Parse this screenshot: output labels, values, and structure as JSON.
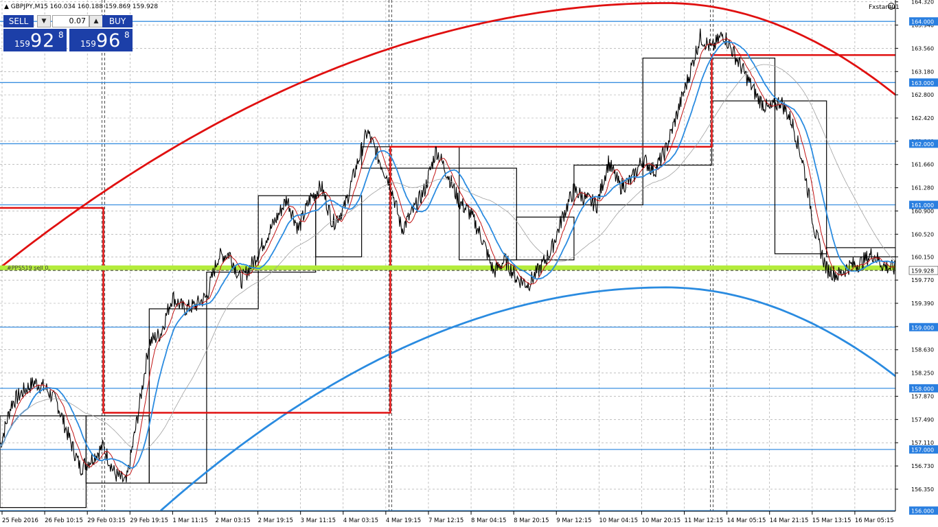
{
  "header": {
    "symbol_line": "▲ GBPJPY,M15  160.034 160.188 159.869 159.928"
  },
  "expert": {
    "label": "Fxstareu1"
  },
  "trade_panel": {
    "sell_label": "SELL",
    "buy_label": "BUY",
    "lot": "0.07",
    "sell_quote": {
      "prefix": "159",
      "big": "92",
      "sup": "8"
    },
    "buy_quote": {
      "prefix": "159",
      "big": "96",
      "sup": "8"
    }
  },
  "object_label": "#PPS519 sell 0.",
  "colors": {
    "background": "#ffffff",
    "grid": "#9a9a9a",
    "candles": "#000000",
    "level_lines": "#3a8fe0",
    "level_label_bg": "#2a7fe0",
    "red": "#e01010",
    "blue_curve": "#2a8be0",
    "highlight": "#b4ec3c",
    "box": "#000000"
  },
  "chart_data": {
    "type": "line",
    "symbol": "GBPJPY",
    "timeframe": "M15",
    "ohlc": {
      "open": 160.034,
      "high": 160.188,
      "low": 159.869,
      "close": 159.928
    },
    "ylim": [
      155.99,
      164.35
    ],
    "y_ticks": [
      164.32,
      163.94,
      163.56,
      163.18,
      162.8,
      162.42,
      162.04,
      161.66,
      161.28,
      160.9,
      160.52,
      160.15,
      159.77,
      159.39,
      159.01,
      158.63,
      158.25,
      157.87,
      157.49,
      157.11,
      156.73,
      156.35
    ],
    "y_tick_labels": [
      "164.320",
      "163.940",
      "163.560",
      "163.180",
      "162.800",
      "162.420",
      "162.040",
      "161.660",
      "161.280",
      "160.900",
      "160.520",
      "160.150",
      "159.770",
      "159.390",
      "159.010",
      "158.630",
      "158.250",
      "157.870",
      "157.490",
      "157.110",
      "156.730",
      "156.350"
    ],
    "x_labels": [
      "25 Feb 2016",
      "26 Feb 10:15",
      "29 Feb 03:15",
      "29 Feb 19:15",
      "1 Mar 11:15",
      "2 Mar 03:15",
      "2 Mar 19:15",
      "3 Mar 11:15",
      "4 Mar 03:15",
      "4 Mar 19:15",
      "7 Mar 12:15",
      "8 Mar 04:15",
      "8 Mar 20:15",
      "9 Mar 12:15",
      "10 Mar 04:15",
      "10 Mar 20:15",
      "11 Mar 12:15",
      "14 Mar 05:15",
      "14 Mar 21:15",
      "15 Mar 13:15",
      "16 Mar 05:15"
    ],
    "horizontal_levels": [
      {
        "value": 164.0,
        "label": "164.000"
      },
      {
        "value": 163.0,
        "label": "163.000"
      },
      {
        "value": 162.0,
        "label": "162.000"
      },
      {
        "value": 161.0,
        "label": "161.000"
      },
      {
        "value": 159.0,
        "label": "159.000"
      },
      {
        "value": 158.0,
        "label": "158.000"
      },
      {
        "value": 157.0,
        "label": "157.000"
      },
      {
        "value": 156.0,
        "label": "156.000"
      }
    ],
    "current_price": {
      "value": 159.928,
      "label": "159.928"
    },
    "highlight_level": {
      "value": 159.97
    },
    "price_path": [
      [
        0,
        157.05
      ],
      [
        1,
        157.75
      ],
      [
        2,
        157.95
      ],
      [
        3,
        158.1
      ],
      [
        4,
        158.0
      ],
      [
        5,
        157.75
      ],
      [
        6,
        157.2
      ],
      [
        7,
        156.7
      ],
      [
        8,
        156.85
      ],
      [
        9,
        157.05
      ],
      [
        10,
        156.6
      ],
      [
        11,
        156.45
      ],
      [
        12,
        157.55
      ],
      [
        13,
        158.75
      ],
      [
        14,
        158.9
      ],
      [
        15,
        159.5
      ],
      [
        16,
        159.3
      ],
      [
        17,
        159.35
      ],
      [
        18,
        159.5
      ],
      [
        19,
        160.15
      ],
      [
        20,
        160.2
      ],
      [
        21,
        159.75
      ],
      [
        22,
        160.05
      ],
      [
        23,
        160.4
      ],
      [
        24,
        160.75
      ],
      [
        25,
        161.1
      ],
      [
        26,
        160.6
      ],
      [
        27,
        161.1
      ],
      [
        28,
        161.3
      ],
      [
        29,
        160.7
      ],
      [
        30,
        160.95
      ],
      [
        31,
        161.6
      ],
      [
        32,
        162.2
      ],
      [
        33,
        161.75
      ],
      [
        34,
        161.35
      ],
      [
        35,
        160.6
      ],
      [
        36,
        160.9
      ],
      [
        37,
        161.25
      ],
      [
        38,
        161.9
      ],
      [
        39,
        161.5
      ],
      [
        40,
        161.05
      ],
      [
        41,
        160.85
      ],
      [
        42,
        160.45
      ],
      [
        43,
        159.9
      ],
      [
        44,
        160.1
      ],
      [
        45,
        159.8
      ],
      [
        46,
        159.7
      ],
      [
        47,
        159.95
      ],
      [
        48,
        160.25
      ],
      [
        49,
        160.8
      ],
      [
        50,
        161.25
      ],
      [
        51,
        161.1
      ],
      [
        52,
        161.0
      ],
      [
        53,
        161.7
      ],
      [
        54,
        161.3
      ],
      [
        55,
        161.4
      ],
      [
        56,
        161.75
      ],
      [
        57,
        161.55
      ],
      [
        58,
        161.9
      ],
      [
        59,
        162.5
      ],
      [
        60,
        163.1
      ],
      [
        61,
        163.75
      ],
      [
        62,
        163.55
      ],
      [
        63,
        163.8
      ],
      [
        64,
        163.45
      ],
      [
        65,
        163.1
      ],
      [
        66,
        162.75
      ],
      [
        67,
        162.55
      ],
      [
        68,
        162.7
      ],
      [
        69,
        162.35
      ],
      [
        70,
        161.65
      ],
      [
        71,
        160.55
      ],
      [
        72,
        159.95
      ],
      [
        73,
        159.85
      ],
      [
        74,
        160.0
      ],
      [
        75,
        160.05
      ],
      [
        76,
        160.2
      ],
      [
        77,
        160.0
      ],
      [
        78,
        159.95
      ]
    ],
    "moving_averages": [
      {
        "name": "red",
        "color": "#c01010",
        "period": 8
      },
      {
        "name": "blue",
        "color": "#2a8be0",
        "period": 20
      },
      {
        "name": "gray",
        "color": "#a0a0a0",
        "period": 60
      }
    ],
    "step_boxes": [
      {
        "x0": 0,
        "x1": 7.5,
        "low": 156.05,
        "high": 157.55
      },
      {
        "x0": 7.5,
        "x1": 13,
        "low": 156.45,
        "high": 157.55
      },
      {
        "x0": 13,
        "x1": 18,
        "low": 156.45,
        "high": 159.3
      },
      {
        "x0": 18,
        "x1": 22.5,
        "low": 159.3,
        "high": 159.9
      },
      {
        "x0": 22.5,
        "x1": 27.5,
        "low": 159.9,
        "high": 161.15
      },
      {
        "x0": 27.5,
        "x1": 31.5,
        "low": 160.15,
        "high": 161.15
      },
      {
        "x0": 31.5,
        "x1": 40,
        "low": 161.6,
        "high": 161.95
      },
      {
        "x0": 40,
        "x1": 45,
        "low": 160.1,
        "high": 161.6
      },
      {
        "x0": 45,
        "x1": 50,
        "low": 160.1,
        "high": 160.8
      },
      {
        "x0": 50,
        "x1": 56,
        "low": 161.0,
        "high": 161.65
      },
      {
        "x0": 56,
        "x1": 62,
        "low": 161.65,
        "high": 163.4
      },
      {
        "x0": 62,
        "x1": 67.5,
        "low": 162.7,
        "high": 163.4
      },
      {
        "x0": 67.5,
        "x1": 72,
        "low": 160.2,
        "high": 162.7
      },
      {
        "x0": 72,
        "x1": 78,
        "low": 160.15,
        "high": 160.3
      }
    ],
    "red_steps": [
      [
        0,
        160.95
      ],
      [
        9,
        160.95
      ],
      [
        9,
        157.6
      ],
      [
        34,
        157.6
      ],
      [
        34,
        161.95
      ],
      [
        62,
        161.95
      ],
      [
        62,
        163.45
      ],
      [
        78,
        163.45
      ]
    ],
    "red_arc": {
      "peak_x": 58,
      "peak_y": 164.3,
      "start": [
        0,
        159.97
      ],
      "end": [
        78,
        162.8
      ]
    },
    "blue_arc": {
      "peak_x": 58,
      "peak_y": 159.65,
      "start": [
        14,
        156.0
      ],
      "end": [
        78,
        158.2
      ]
    },
    "vertical_markers": [
      9,
      34,
      62
    ]
  }
}
